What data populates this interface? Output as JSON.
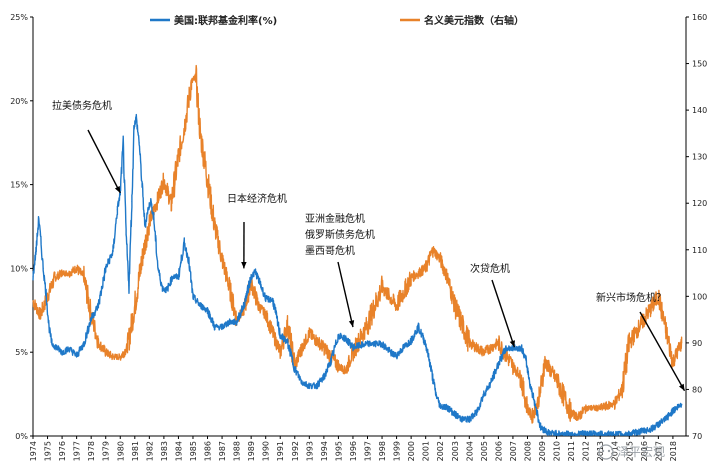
{
  "chart_data": {
    "type": "line",
    "title": "",
    "legend": [
      {
        "name": "美国:联邦基金利率(%)",
        "color": "#1f78c8"
      },
      {
        "name": "名义美元指数（右轴）",
        "color": "#e8822a"
      }
    ],
    "legend_position": "top",
    "y_left": {
      "min": 0,
      "max": 25,
      "ticks": [
        "0%",
        "5%",
        "10%",
        "15%",
        "20%",
        "25%"
      ]
    },
    "y_right": {
      "min": 70,
      "max": 160,
      "ticks": [
        "70",
        "80",
        "90",
        "100",
        "110",
        "120",
        "130",
        "140",
        "150",
        "160"
      ]
    },
    "x_ticks": [
      "1974",
      "1975",
      "1976",
      "1977",
      "1978",
      "1979",
      "1980",
      "1981",
      "1982",
      "1983",
      "1984",
      "1985",
      "1986",
      "1987",
      "1988",
      "1989",
      "1990",
      "1991",
      "1992",
      "1993",
      "1994",
      "1995",
      "1996",
      "1997",
      "1998",
      "1999",
      "2000",
      "2001",
      "2002",
      "2003",
      "2004",
      "2005",
      "2006",
      "2007",
      "2008",
      "2009",
      "2010",
      "2011",
      "2012",
      "2013",
      "2014",
      "2015",
      "2016",
      "2017",
      "2018"
    ],
    "series": [
      {
        "name": "美国:联邦基金利率(%)",
        "axis": "left",
        "color": "#1f78c8",
        "x": [
          1974.0,
          1974.2,
          1974.4,
          1974.5,
          1974.7,
          1974.9,
          1975.1,
          1975.3,
          1975.6,
          1976.0,
          1976.5,
          1977.0,
          1977.5,
          1978.0,
          1978.5,
          1979.0,
          1979.5,
          1979.8,
          1980.0,
          1980.2,
          1980.4,
          1980.6,
          1980.8,
          1980.95,
          1981.1,
          1981.3,
          1981.5,
          1981.7,
          1981.9,
          1982.1,
          1982.3,
          1982.6,
          1982.9,
          1983.2,
          1983.6,
          1984.0,
          1984.4,
          1984.7,
          1985.0,
          1985.5,
          1986.0,
          1986.5,
          1987.0,
          1987.5,
          1988.0,
          1988.5,
          1989.0,
          1989.3,
          1989.7,
          1990.0,
          1990.5,
          1991.0,
          1991.5,
          1992.0,
          1992.5,
          1993.0,
          1993.5,
          1994.0,
          1994.5,
          1995.0,
          1995.5,
          1996.0,
          1997.0,
          1998.0,
          1998.7,
          1999.0,
          1999.5,
          2000.0,
          2000.5,
          2001.0,
          2001.3,
          2001.7,
          2002.0,
          2002.5,
          2003.0,
          2003.5,
          2004.0,
          2004.5,
          2005.0,
          2005.5,
          2006.0,
          2006.5,
          2007.0,
          2007.6,
          2007.9,
          2008.2,
          2008.5,
          2008.9,
          2009.5,
          2010.0,
          2011.0,
          2012.0,
          2013.0,
          2014.0,
          2015.0,
          2015.9,
          2016.5,
          2017.0,
          2017.5,
          2018.0,
          2018.6
        ],
        "values": [
          9.5,
          11.0,
          13.0,
          12.0,
          10.0,
          8.5,
          6.5,
          5.5,
          5.3,
          5.0,
          5.2,
          4.8,
          5.5,
          7.0,
          7.8,
          10.0,
          11.0,
          13.5,
          14.5,
          17.5,
          12.0,
          9.0,
          14.0,
          18.5,
          19.0,
          17.5,
          15.0,
          12.5,
          13.5,
          14.0,
          13.0,
          10.0,
          8.8,
          8.7,
          9.5,
          9.5,
          11.5,
          10.5,
          8.3,
          7.8,
          7.5,
          6.5,
          6.5,
          6.8,
          6.8,
          7.8,
          9.5,
          9.8,
          8.9,
          8.2,
          8.1,
          6.0,
          5.6,
          4.0,
          3.2,
          3.0,
          3.0,
          3.5,
          4.5,
          6.0,
          5.8,
          5.3,
          5.5,
          5.5,
          4.9,
          4.8,
          5.3,
          5.7,
          6.5,
          5.5,
          4.3,
          2.5,
          1.8,
          1.7,
          1.3,
          1.0,
          1.0,
          1.4,
          2.5,
          3.2,
          4.3,
          5.2,
          5.25,
          5.25,
          4.5,
          3.0,
          2.0,
          0.5,
          0.18,
          0.15,
          0.1,
          0.15,
          0.12,
          0.1,
          0.12,
          0.3,
          0.4,
          0.7,
          1.0,
          1.5,
          1.9
        ]
      },
      {
        "name": "名义美元指数（右轴）",
        "axis": "right",
        "color": "#e8822a",
        "x": [
          1974.0,
          1974.5,
          1975.0,
          1975.5,
          1976.0,
          1976.5,
          1977.0,
          1977.5,
          1978.0,
          1978.5,
          1979.0,
          1979.5,
          1980.0,
          1980.5,
          1981.0,
          1981.5,
          1982.0,
          1982.5,
          1983.0,
          1983.5,
          1984.0,
          1984.5,
          1984.9,
          1985.2,
          1985.5,
          1986.0,
          1986.5,
          1987.0,
          1987.5,
          1988.0,
          1988.5,
          1989.0,
          1989.5,
          1990.0,
          1990.5,
          1991.0,
          1991.5,
          1992.0,
          1992.5,
          1993.0,
          1994.0,
          1995.0,
          1995.5,
          1996.0,
          1997.0,
          1998.0,
          1999.0,
          2000.0,
          2001.0,
          2001.5,
          2002.0,
          2002.5,
          2003.0,
          2004.0,
          2005.0,
          2006.0,
          2007.0,
          2007.5,
          2008.0,
          2008.3,
          2008.8,
          2009.2,
          2010.0,
          2011.0,
          2011.5,
          2012.0,
          2013.0,
          2014.0,
          2014.5,
          2015.0,
          2016.0,
          2017.0,
          2017.5,
          2018.0,
          2018.6
        ],
        "values": [
          99,
          96,
          100,
          104,
          105,
          105,
          106,
          104,
          96,
          90,
          88,
          87,
          87,
          89,
          98,
          108,
          116,
          120,
          125,
          120,
          130,
          138,
          146,
          147,
          135,
          125,
          115,
          108,
          102,
          95,
          97,
          103,
          98,
          96,
          92,
          88,
          94,
          85,
          89,
          92,
          89,
          85,
          84,
          88,
          94,
          102,
          98,
          104,
          106,
          110,
          108,
          104,
          98,
          90,
          88,
          90,
          85,
          83,
          76,
          74,
          78,
          86,
          82,
          75,
          74,
          76,
          76,
          77,
          80,
          90,
          95,
          100,
          93,
          86,
          90
        ]
      }
    ],
    "annotations": [
      {
        "text": "拉美债务危机",
        "x": 1980.0,
        "y": 14.5
      },
      {
        "text": "日本经济危机",
        "x": 1988.5,
        "y": 10.0
      },
      {
        "text": "亚洲金融危机",
        "x": 1996.0,
        "y": 6.5
      },
      {
        "text": "俄罗斯债务危机",
        "x": null,
        "y": null
      },
      {
        "text": "墨西哥危机",
        "x": null,
        "y": null
      },
      {
        "text": "次贷危机",
        "x": 2007.1,
        "y": 5.3
      },
      {
        "text": "新兴市场危机？",
        "x": 2018.8,
        "y": 2.7
      }
    ]
  },
  "watermark": "泽平宏观"
}
